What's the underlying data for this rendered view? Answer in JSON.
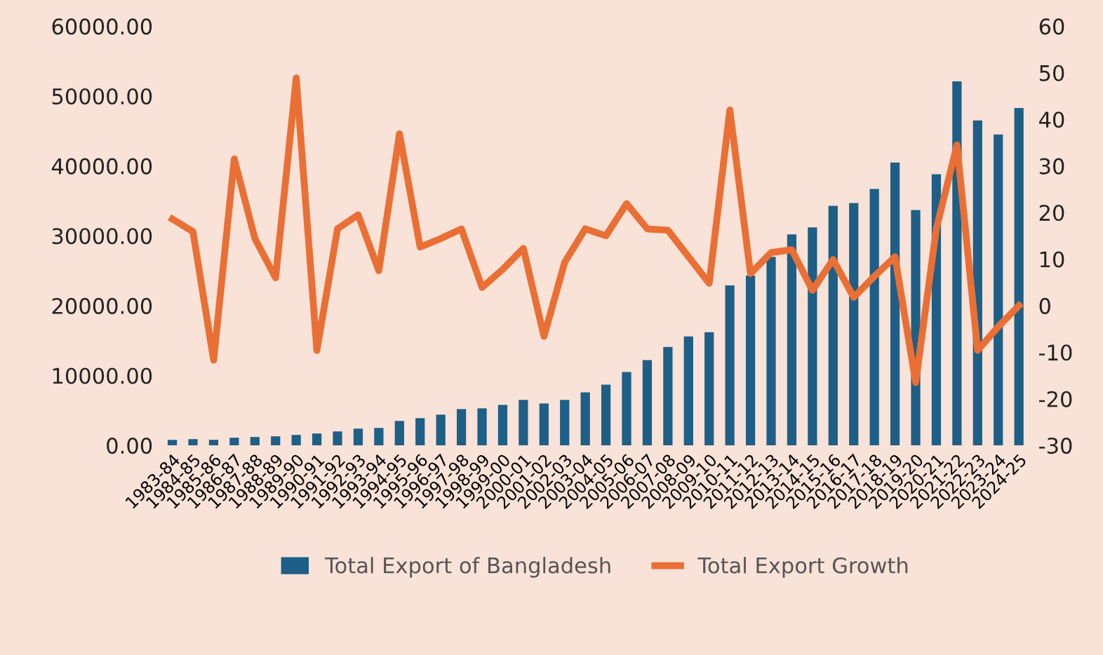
{
  "chart_data": {
    "type": "bar",
    "categories": [
      "1983-84",
      "1984-85",
      "1985-86",
      "1986-87",
      "1987-88",
      "1988-89",
      "1989-90",
      "1990-91",
      "1991-92",
      "1992-93",
      "1993-94",
      "1994-95",
      "1995-96",
      "1996-97",
      "1997-98",
      "1998-99",
      "1999-00",
      "2000-01",
      "2001-02",
      "2002-03",
      "2003-04",
      "2004-05",
      "2005-06",
      "2006-07",
      "2007-08",
      "2008-09",
      "2009-10",
      "2010-11",
      "2011-12",
      "2012-13",
      "2013-14",
      "2014-15",
      "2015-16",
      "2016-17",
      "2017-18",
      "2018-19",
      "2019-20",
      "2020-21",
      "2021-22",
      "2022-23",
      "2023-24",
      "2024-25"
    ],
    "series": [
      {
        "name": "Total Export of Bangladesh",
        "color": "#1d5f86",
        "values": [
          800,
          900,
          800,
          1100,
          1200,
          1300,
          1500,
          1700,
          2000,
          2400,
          2500,
          3500,
          3900,
          4400,
          5200,
          5300,
          5800,
          6500,
          6000,
          6500,
          7600,
          8700,
          10500,
          12200,
          14100,
          15600,
          16200,
          22900,
          24300,
          27000,
          30200,
          31200,
          34300,
          34700,
          36700,
          40500,
          33700,
          38800,
          52100,
          46500,
          44500,
          48300
        ]
      },
      {
        "name": "Total Export Growth",
        "type": "line",
        "axis": "y2",
        "color": "#ea6f35",
        "values": [
          18.6,
          15.9,
          -11.7,
          31.5,
          14.4,
          6,
          48.9,
          -9.6,
          16.5,
          19.5,
          7.5,
          36.9,
          12.6,
          14.4,
          16.5,
          3.9,
          7.8,
          12.3,
          -6.6,
          9.3,
          16.5,
          15,
          21.9,
          16.5,
          16.2,
          10.5,
          4.8,
          42,
          6.9,
          11.4,
          12,
          3.3,
          9.9,
          1.8,
          6.3,
          10.5,
          -16.5,
          16.5,
          34.5,
          -9.6,
          -4.5,
          0
        ]
      }
    ],
    "ylim": [
      0,
      60000
    ],
    "yticks": [
      {
        "value": 0,
        "label": "0.00"
      },
      {
        "value": 10000,
        "label": "10000.00"
      },
      {
        "value": 20000,
        "label": "20000.00"
      },
      {
        "value": 30000,
        "label": "30000.00"
      },
      {
        "value": 40000,
        "label": "40000.00"
      },
      {
        "value": 50000,
        "label": "50000.00"
      },
      {
        "value": 60000,
        "label": "60000.00"
      }
    ],
    "y2lim": [
      -30,
      60
    ],
    "y2ticks": [
      -30,
      -20,
      -10,
      0,
      10,
      20,
      30,
      40,
      50,
      60
    ],
    "grid": false,
    "legend": "bottom",
    "marker": "none",
    "line_style": "solid"
  }
}
